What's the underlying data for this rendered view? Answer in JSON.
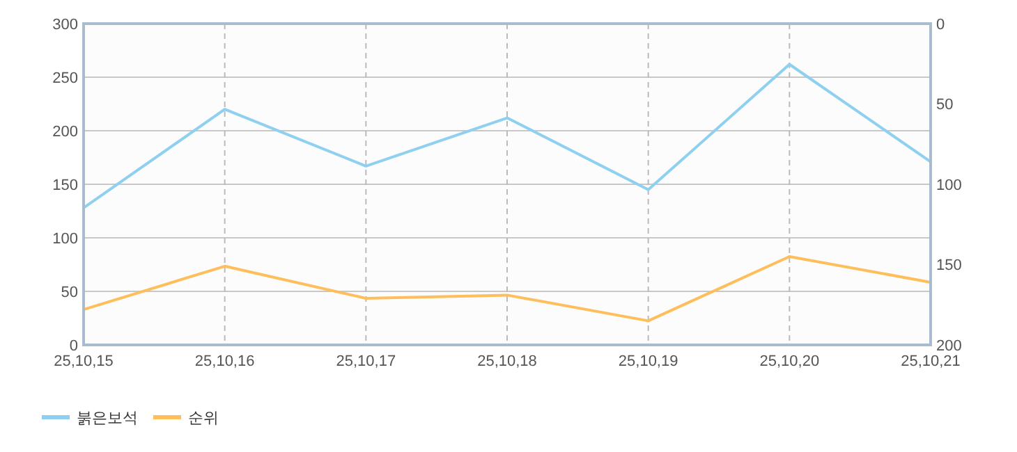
{
  "chart_data": {
    "type": "line",
    "categories": [
      "25,10,15",
      "25,10,16",
      "25,10,17",
      "25,10,18",
      "25,10,19",
      "25,10,20",
      "25,10,21"
    ],
    "series": [
      {
        "name": "붉은보석",
        "color": "#8fd0f0",
        "values": [
          128,
          220,
          167,
          212,
          145,
          262,
          171
        ]
      },
      {
        "name": "순위",
        "color": "#ffbe5c",
        "axis": "y2",
        "values": [
          178,
          151,
          171,
          169,
          185,
          145,
          161
        ]
      }
    ],
    "ylim": [
      0,
      300
    ],
    "yticks": [
      0,
      50,
      100,
      150,
      200,
      250,
      300
    ],
    "y2lim": [
      200,
      0
    ],
    "y2ticks": [
      0,
      50,
      100,
      150,
      200
    ],
    "grid": true,
    "legend": "bottom left",
    "marker": "none",
    "line_style": "solid"
  }
}
